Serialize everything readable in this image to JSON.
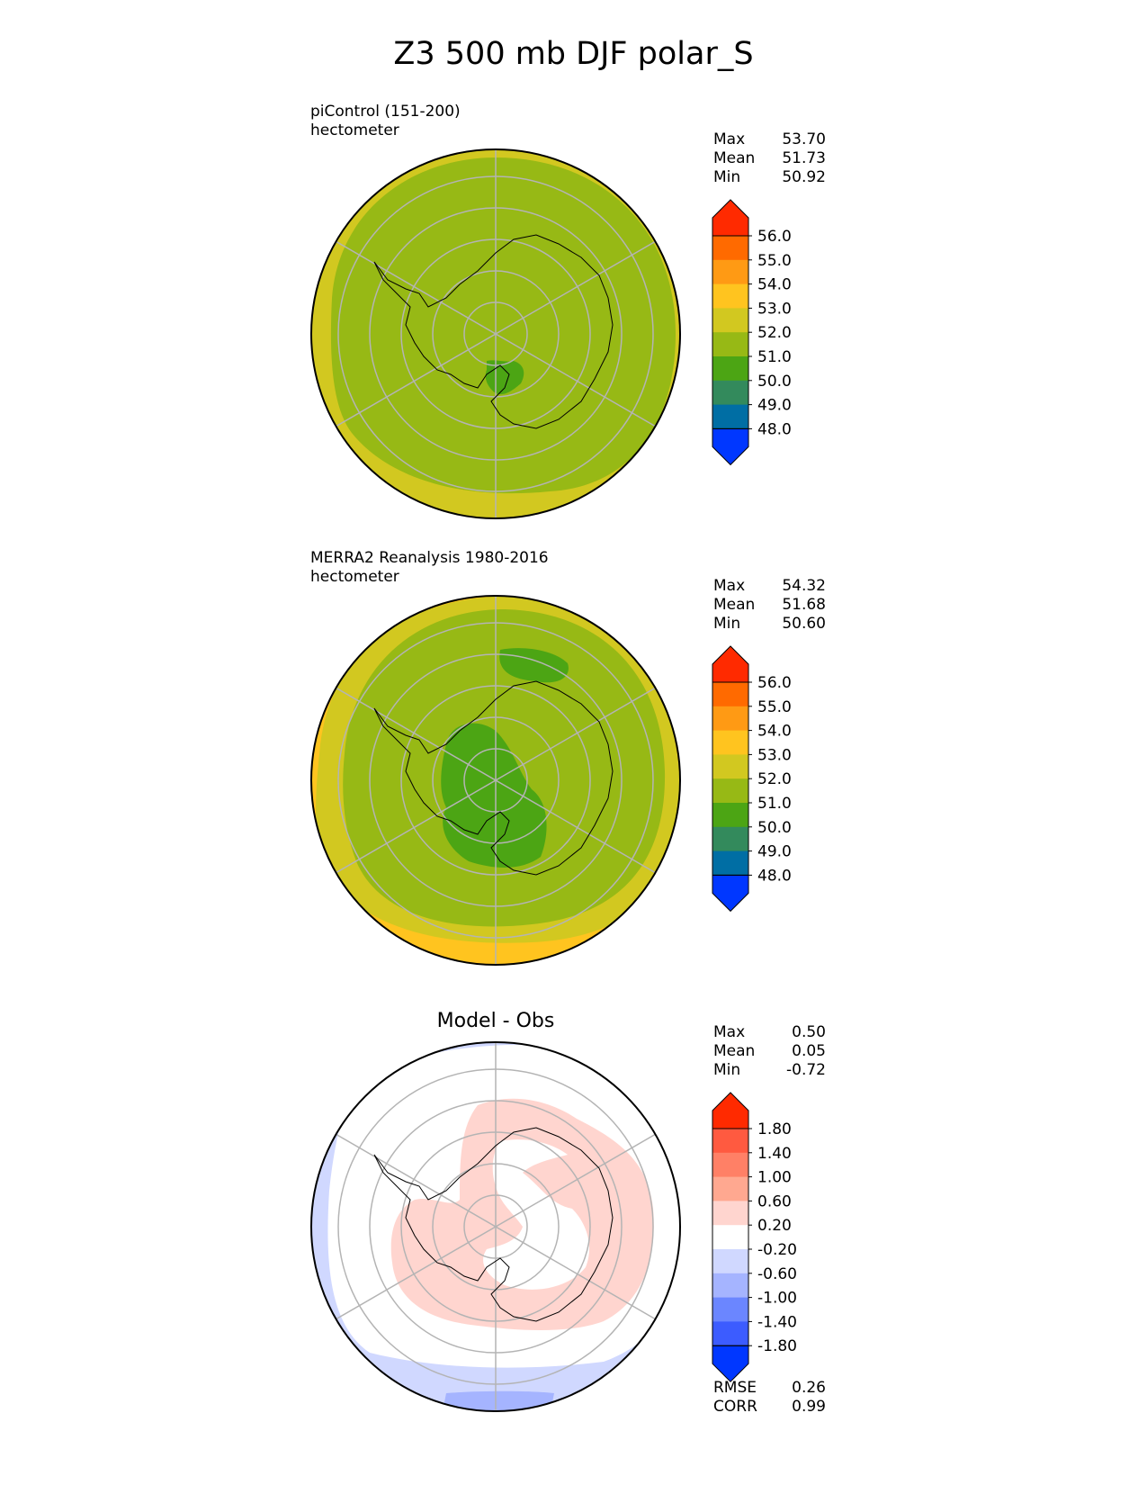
{
  "title": "Z3 500 mb DJF polar_S",
  "panels": [
    {
      "id": "test",
      "title_line1": "piControl (151-200)",
      "title_line2": "hectometer",
      "stats": [
        {
          "label": "Max",
          "value": "53.70"
        },
        {
          "label": "Mean",
          "value": "51.73"
        },
        {
          "label": "Min",
          "value": "50.92"
        }
      ]
    },
    {
      "id": "ref",
      "title_line1": "MERRA2 Reanalysis 1980-2016",
      "title_line2": "hectometer",
      "stats": [
        {
          "label": "Max",
          "value": "54.32"
        },
        {
          "label": "Mean",
          "value": "51.68"
        },
        {
          "label": "Min",
          "value": "50.60"
        }
      ]
    },
    {
      "id": "diff",
      "title": "Model - Obs",
      "stats": [
        {
          "label": "Max",
          "value": "0.50"
        },
        {
          "label": "Mean",
          "value": "0.05"
        },
        {
          "label": "Min",
          "value": "-0.72"
        }
      ],
      "extra_stats": [
        {
          "label": "RMSE",
          "value": "0.26"
        },
        {
          "label": "CORR",
          "value": "0.99"
        }
      ]
    }
  ],
  "chart_data": [
    {
      "type": "heatmap",
      "title": "piControl (151-200)",
      "units": "hectometer",
      "projection": "south-polar-stereographic",
      "colorbar": {
        "ticks": [
          "56.0",
          "55.0",
          "54.0",
          "53.0",
          "52.0",
          "51.0",
          "50.0",
          "49.0",
          "48.0"
        ],
        "colors": [
          "#ff2a00",
          "#ff6a00",
          "#ff9a14",
          "#ffc41f",
          "#d2c820",
          "#97b915",
          "#4ca514",
          "#338a5c",
          "#006ea4",
          "#0037ff"
        ],
        "extend": "both"
      },
      "stats": {
        "max": 53.7,
        "mean": 51.73,
        "min": 50.92
      }
    },
    {
      "type": "heatmap",
      "title": "MERRA2 Reanalysis 1980-2016",
      "units": "hectometer",
      "projection": "south-polar-stereographic",
      "colorbar": {
        "ticks": [
          "56.0",
          "55.0",
          "54.0",
          "53.0",
          "52.0",
          "51.0",
          "50.0",
          "49.0",
          "48.0"
        ],
        "colors": [
          "#ff2a00",
          "#ff6a00",
          "#ff9a14",
          "#ffc41f",
          "#d2c820",
          "#97b915",
          "#4ca514",
          "#338a5c",
          "#006ea4",
          "#0037ff"
        ],
        "extend": "both"
      },
      "stats": {
        "max": 54.32,
        "mean": 51.68,
        "min": 50.6
      }
    },
    {
      "type": "heatmap",
      "title": "Model - Obs",
      "projection": "south-polar-stereographic",
      "colorbar": {
        "ticks": [
          "1.80",
          "1.40",
          "1.00",
          "0.60",
          "0.20",
          "-0.20",
          "-0.60",
          "-1.00",
          "-1.40",
          "-1.80"
        ],
        "colors": [
          "#ff2a00",
          "#ff5a40",
          "#ff8066",
          "#ffa890",
          "#ffd5cf",
          "#ffffff",
          "#d0d8ff",
          "#a5b4ff",
          "#6b86ff",
          "#3c5cff",
          "#0037ff"
        ],
        "extend": "both"
      },
      "stats": {
        "max": 0.5,
        "mean": 0.05,
        "min": -0.72,
        "rmse": 0.26,
        "corr": 0.99
      }
    }
  ]
}
